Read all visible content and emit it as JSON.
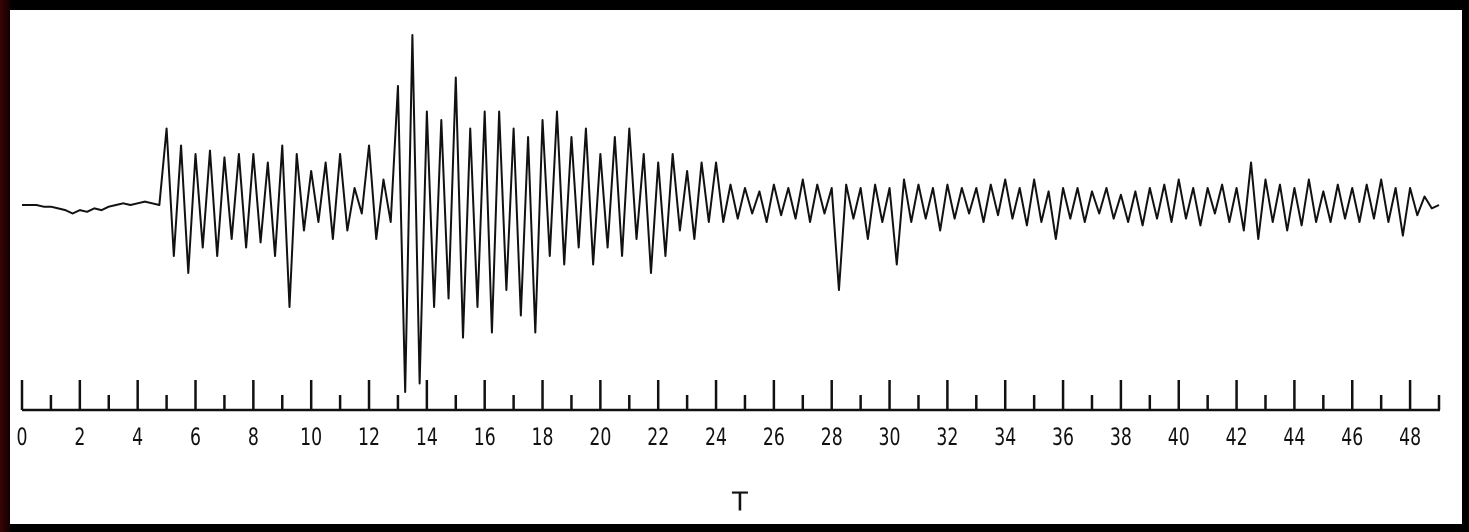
{
  "chart_data": {
    "type": "line",
    "x_label": "T",
    "xlim": [
      0,
      49
    ],
    "ylim": [
      -1.2,
      1.2
    ],
    "xticks": [
      0,
      2,
      4,
      6,
      8,
      10,
      12,
      14,
      16,
      18,
      20,
      22,
      24,
      26,
      28,
      30,
      32,
      34,
      36,
      38,
      40,
      42,
      44,
      46,
      48
    ],
    "minor_xticks": [
      1,
      3,
      5,
      7,
      9,
      11,
      13,
      15,
      17,
      19,
      21,
      23,
      25,
      27,
      29,
      31,
      33,
      35,
      37,
      39,
      41,
      43,
      45,
      47,
      49
    ],
    "color": "#111111",
    "x": [
      0,
      0.25,
      0.5,
      0.75,
      1,
      1.25,
      1.5,
      1.75,
      2,
      2.25,
      2.5,
      2.75,
      3,
      3.25,
      3.5,
      3.75,
      4,
      4.25,
      4.5,
      4.75,
      5,
      5.25,
      5.5,
      5.75,
      6,
      6.25,
      6.5,
      6.75,
      7,
      7.25,
      7.5,
      7.75,
      8,
      8.25,
      8.5,
      8.75,
      9,
      9.25,
      9.5,
      9.75,
      10,
      10.25,
      10.5,
      10.75,
      11,
      11.25,
      11.5,
      11.75,
      12,
      12.25,
      12.5,
      12.75,
      13,
      13.25,
      13.5,
      13.75,
      14,
      14.25,
      14.5,
      14.75,
      15,
      15.25,
      15.5,
      15.75,
      16,
      16.25,
      16.5,
      16.75,
      17,
      17.25,
      17.5,
      17.75,
      18,
      18.25,
      18.5,
      18.75,
      19,
      19.25,
      19.5,
      19.75,
      20,
      20.25,
      20.5,
      20.75,
      21,
      21.25,
      21.5,
      21.75,
      22,
      22.25,
      22.5,
      22.75,
      23,
      23.25,
      23.5,
      23.75,
      24,
      24.25,
      24.5,
      24.75,
      25,
      25.25,
      25.5,
      25.75,
      26,
      26.25,
      26.5,
      26.75,
      27,
      27.25,
      27.5,
      27.75,
      28,
      28.25,
      28.5,
      28.75,
      29,
      29.25,
      29.5,
      29.75,
      30,
      30.25,
      30.5,
      30.75,
      31,
      31.25,
      31.5,
      31.75,
      32,
      32.25,
      32.5,
      32.75,
      33,
      33.25,
      33.5,
      33.75,
      34,
      34.25,
      34.5,
      34.75,
      35,
      35.25,
      35.5,
      35.75,
      36,
      36.25,
      36.5,
      36.75,
      37,
      37.25,
      37.5,
      37.75,
      38,
      38.25,
      38.5,
      38.75,
      39,
      39.25,
      39.5,
      39.75,
      40,
      40.25,
      40.5,
      40.75,
      41,
      41.25,
      41.5,
      41.75,
      42,
      42.25,
      42.5,
      42.75,
      43,
      43.25,
      43.5,
      43.75,
      44,
      44.25,
      44.5,
      44.75,
      45,
      45.25,
      45.5,
      45.75,
      46,
      46.25,
      46.5,
      46.75,
      47,
      47.25,
      47.5,
      47.75,
      48,
      48.25,
      48.5,
      48.75,
      49
    ],
    "values": [
      0,
      0,
      0,
      -0.01,
      -0.01,
      -0.02,
      -0.03,
      -0.05,
      -0.03,
      -0.04,
      -0.02,
      -0.03,
      -0.01,
      0,
      0.01,
      0,
      0.01,
      0.02,
      0.01,
      0,
      0.45,
      -0.3,
      0.35,
      -0.4,
      0.3,
      -0.25,
      0.32,
      -0.3,
      0.28,
      -0.2,
      0.3,
      -0.25,
      0.3,
      -0.22,
      0.25,
      -0.3,
      0.35,
      -0.6,
      0.3,
      -0.15,
      0.2,
      -0.1,
      0.25,
      -0.2,
      0.3,
      -0.15,
      0.1,
      -0.05,
      0.35,
      -0.2,
      0.15,
      -0.1,
      0.7,
      -1.1,
      1.0,
      -1.05,
      0.55,
      -0.6,
      0.5,
      -0.55,
      0.75,
      -0.78,
      0.45,
      -0.6,
      0.55,
      -0.75,
      0.55,
      -0.5,
      0.45,
      -0.65,
      0.4,
      -0.75,
      0.5,
      -0.3,
      0.55,
      -0.35,
      0.4,
      -0.25,
      0.45,
      -0.35,
      0.3,
      -0.25,
      0.4,
      -0.3,
      0.45,
      -0.2,
      0.3,
      -0.4,
      0.25,
      -0.3,
      0.3,
      -0.15,
      0.2,
      -0.2,
      0.25,
      -0.1,
      0.25,
      -0.1,
      0.12,
      -0.08,
      0.1,
      -0.05,
      0.08,
      -0.1,
      0.12,
      -0.06,
      0.1,
      -0.08,
      0.15,
      -0.1,
      0.12,
      -0.05,
      0.1,
      -0.5,
      0.12,
      -0.08,
      0.1,
      -0.2,
      0.12,
      -0.1,
      0.1,
      -0.35,
      0.15,
      -0.1,
      0.12,
      -0.08,
      0.1,
      -0.15,
      0.12,
      -0.08,
      0.1,
      -0.05,
      0.1,
      -0.1,
      0.12,
      -0.06,
      0.15,
      -0.08,
      0.1,
      -0.12,
      0.15,
      -0.1,
      0.08,
      -0.2,
      0.1,
      -0.08,
      0.1,
      -0.1,
      0.08,
      -0.05,
      0.1,
      -0.08,
      0.06,
      -0.1,
      0.08,
      -0.12,
      0.1,
      -0.08,
      0.12,
      -0.1,
      0.15,
      -0.08,
      0.1,
      -0.12,
      0.1,
      -0.05,
      0.12,
      -0.1,
      0.1,
      -0.15,
      0.25,
      -0.2,
      0.15,
      -0.1,
      0.12,
      -0.15,
      0.1,
      -0.12,
      0.15,
      -0.1,
      0.08,
      -0.1,
      0.12,
      -0.08,
      0.1,
      -0.1,
      0.12,
      -0.08,
      0.15,
      -0.1,
      0.1,
      -0.18,
      0.1,
      -0.06,
      0.05,
      -0.02,
      0
    ]
  }
}
